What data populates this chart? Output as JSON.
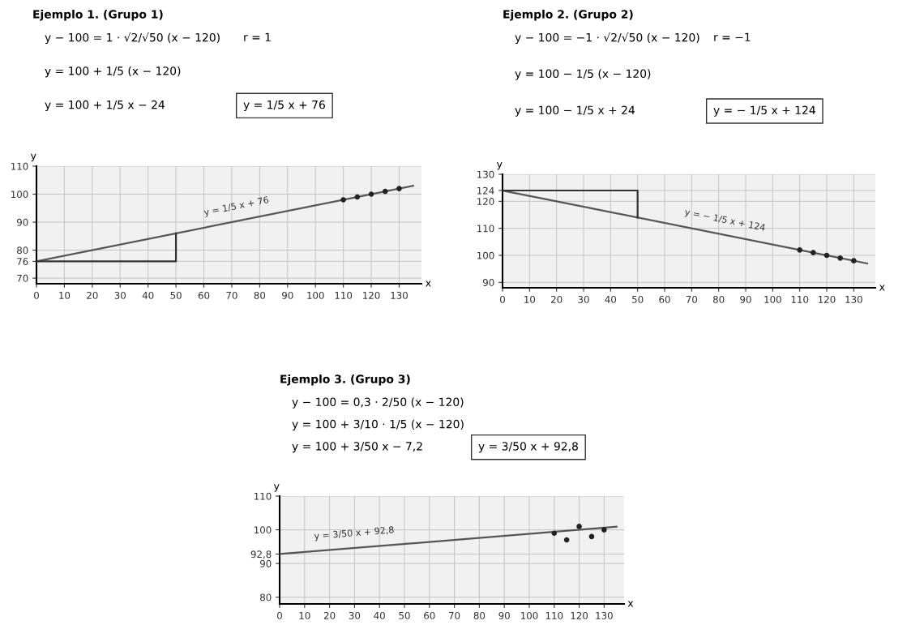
{
  "chart_data": [
    {
      "type": "line",
      "title": "Ejemplo 1. (Grupo 1)",
      "subtitle": "r = 1",
      "xlabel": "x",
      "ylabel": "y",
      "annotations": [
        "y − 100 = 1 · √2/√50 (x − 120)",
        "y = 100 + 1/5 (x − 120)",
        "y = 100 + 1/5 x − 24",
        "y = 1/5 x + 76",
        {
          "text": "y = 1/5 x + 76",
          "x": 72,
          "y": 90.4
        }
      ],
      "series": [
        {
          "x": [
            0,
            135
          ],
          "values": [
            76,
            103
          ],
          "color": "#555555"
        },
        {
          "x": [
            0,
            50,
            50
          ],
          "values": [
            76,
            76,
            86
          ],
          "color": "#333333"
        },
        {
          "type": "scatter",
          "x": [
            110,
            115,
            120,
            125,
            130
          ],
          "values": [
            98,
            99,
            100,
            101,
            102
          ],
          "color": "#222222",
          "marker": "circle"
        }
      ],
      "xlim": [
        0,
        138
      ],
      "xticks": [
        0,
        10,
        20,
        30,
        40,
        50,
        60,
        70,
        80,
        90,
        100,
        110,
        120,
        130
      ],
      "ylim": [
        68,
        110
      ],
      "yticks": [
        70,
        76,
        80,
        90,
        100,
        110
      ],
      "grid": true
    },
    {
      "type": "line",
      "title": "Ejemplo 2. (Grupo 2)",
      "subtitle": "r = −1",
      "xlabel": "x",
      "ylabel": "y",
      "annotations": [
        "y − 100 = −1 · √2/√50 (x − 120)",
        "y = 100 − 1/5 (x − 120)",
        "y = 100 − 1/5 x + 24",
        "y = − 1/5 x + 124",
        {
          "text": "y = − 1/5 x + 124",
          "x": 82,
          "y": 107.6
        }
      ],
      "series": [
        {
          "x": [
            0,
            135
          ],
          "values": [
            124,
            97
          ],
          "color": "#555555"
        },
        {
          "x": [
            0,
            50,
            50
          ],
          "values": [
            124,
            124,
            114
          ],
          "color": "#333333"
        },
        {
          "type": "scatter",
          "x": [
            110,
            115,
            120,
            125,
            130
          ],
          "values": [
            102,
            101,
            100,
            99,
            98
          ],
          "color": "#222222",
          "marker": "circle"
        }
      ],
      "xlim": [
        0,
        138
      ],
      "xticks": [
        0,
        10,
        20,
        30,
        40,
        50,
        60,
        70,
        80,
        90,
        100,
        110,
        120,
        130
      ],
      "ylim": [
        88,
        130
      ],
      "yticks": [
        90,
        100,
        110,
        120,
        124,
        130
      ],
      "grid": true
    },
    {
      "type": "line",
      "title": "Ejemplo 3. (Grupo 3)",
      "xlabel": "x",
      "ylabel": "y",
      "annotations": [
        "y − 100 = 0,3 · 2/50 (x − 120)",
        "y = 100 + 3/10 · 1/5 (x − 120)",
        "y = 100 + 3/50 x − 7,2",
        "y = 3/50 x + 92,8",
        {
          "text": "y = 3/50 x + 92,8",
          "x": 30,
          "y": 94.6
        }
      ],
      "series": [
        {
          "x": [
            0,
            135
          ],
          "values": [
            92.8,
            100.9
          ],
          "color": "#555555"
        },
        {
          "type": "scatter",
          "x": [
            110,
            115,
            120,
            125,
            130
          ],
          "values": [
            99,
            97,
            101,
            98,
            100
          ],
          "color": "#222222",
          "marker": "circle"
        }
      ],
      "xlim": [
        0,
        138
      ],
      "xticks": [
        0,
        10,
        20,
        30,
        40,
        50,
        60,
        70,
        80,
        90,
        100,
        110,
        120,
        130
      ],
      "ylim": [
        78,
        110
      ],
      "yticks": [
        80,
        {
          "value": 92.8,
          "label": "92,8"
        },
        90,
        100,
        110
      ],
      "grid": true
    }
  ]
}
